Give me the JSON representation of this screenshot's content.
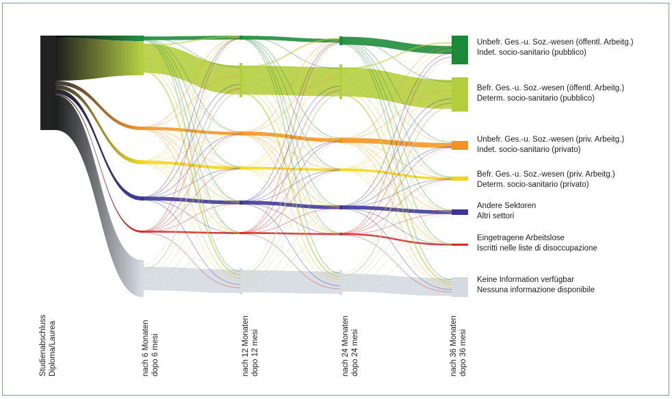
{
  "diagram": {
    "stages": [
      {
        "line1": "Studienabschluss",
        "line2": "Diploma/Laurea"
      },
      {
        "line1": "nach 6 Monaten",
        "line2": "dopo 6 mesi"
      },
      {
        "line1": "nach 12 Monaten",
        "line2": "dopo 12 mesi"
      },
      {
        "line1": "nach 24 Monaten",
        "line2": "dopo 24 mesi"
      },
      {
        "line1": "nach 36 Monaten",
        "line2": "dopo 36 mesi"
      }
    ],
    "categories": [
      {
        "de": "Unbefr. Ges.-u. Soz.-wesen (öffentl. Arbeitg.)",
        "it": "Indet. socio-sanitario (pubblico)",
        "color": "#1a8a38"
      },
      {
        "de": "Befr. Ges.-u. Soz.-wesen (öffentl. Arbeitg.)",
        "it": "Determ. socio-sanitario (pubblico)",
        "color": "#b4cd3c"
      },
      {
        "de": "Unbefr. Ges.-u. Soz.-wesen (priv. Arbeitg.)",
        "it": "Indet. socio-sanitario (privato)",
        "color": "#f39322"
      },
      {
        "de": "Befr. Ges.-u. Soz.-wesen (priv. Arbeitg.)",
        "it": "Determ. socio-sanitario (privato)",
        "color": "#f5d51c"
      },
      {
        "de": "Andere Sektoren",
        "it": "Altri settori",
        "color": "#3a3596"
      },
      {
        "de": "Eingetragene Arbeitslose",
        "it": "Iscritti nelle liste di disoccupazione",
        "color": "#d22a2a"
      },
      {
        "de": "Keine Information verfügbar",
        "it": "Nessuna informazione disponibile",
        "color": "#d5dae2"
      }
    ],
    "source_color": "#222222"
  }
}
